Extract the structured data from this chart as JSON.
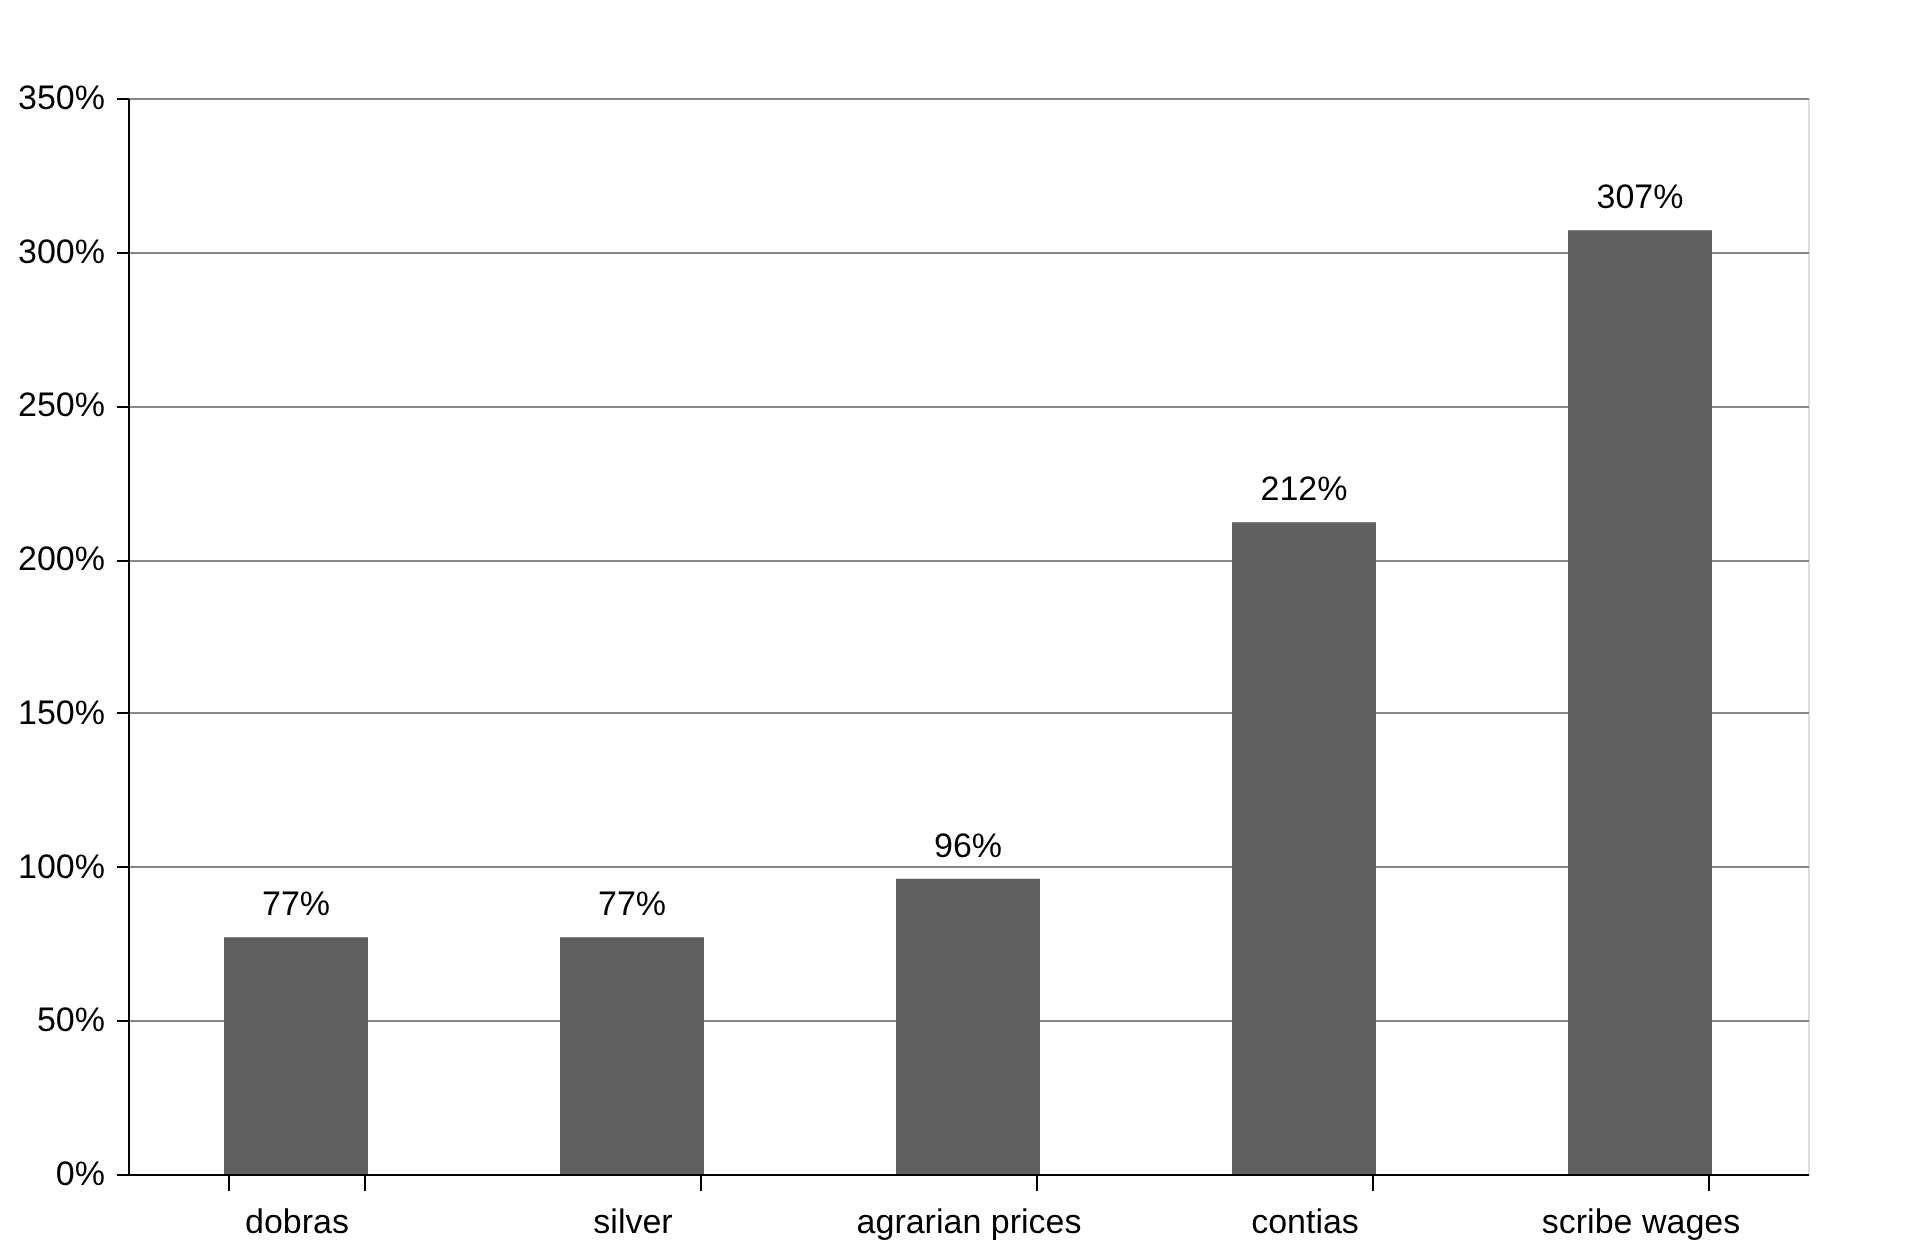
{
  "chart_data": {
    "type": "bar",
    "categories": [
      "dobras",
      "silver",
      "agrarian prices",
      "contias",
      "scribe wages"
    ],
    "values": [
      77,
      77,
      96,
      212,
      307
    ],
    "value_labels": [
      "77%",
      "77%",
      "96%",
      "212%",
      "307%"
    ],
    "color": "#606060",
    "ylim": [
      0,
      350
    ],
    "yticks": [
      {
        "value": 0,
        "label": "0%"
      },
      {
        "value": 50,
        "label": "50%"
      },
      {
        "value": 100,
        "label": "100%"
      },
      {
        "value": 150,
        "label": "150%"
      },
      {
        "value": 200,
        "label": "200%"
      },
      {
        "value": 250,
        "label": "250%"
      },
      {
        "value": 300,
        "label": "300%"
      },
      {
        "value": 350,
        "label": "350%"
      }
    ],
    "grid": "y"
  }
}
